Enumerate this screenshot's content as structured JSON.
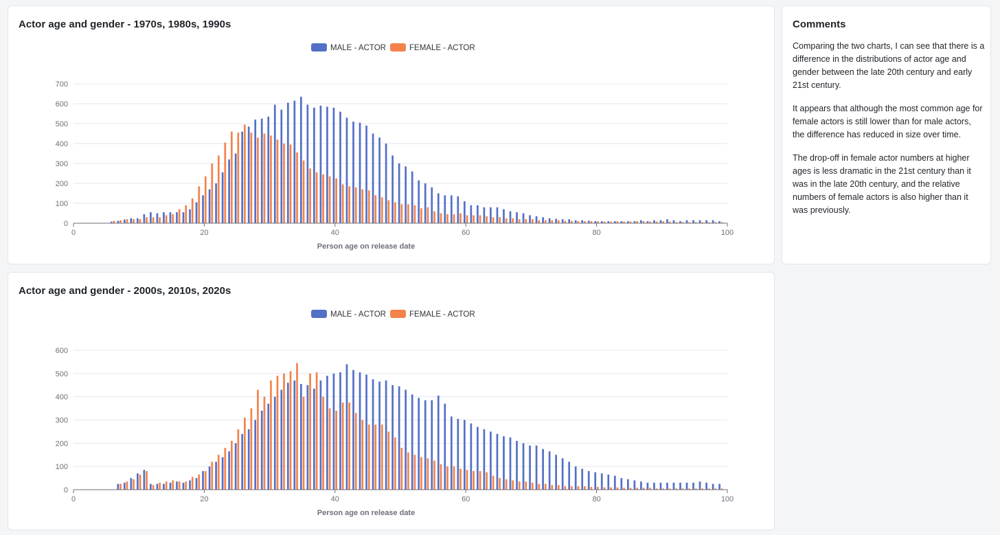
{
  "colors": {
    "male": "#5470c6",
    "female": "#f3834b",
    "grid": "#e4e7f2",
    "axis": "#6e7079"
  },
  "comments": {
    "title": "Comments",
    "paragraphs": [
      "Comparing the two charts, I can see that there is a difference in the distributions of actor age and gender between the late 20th century and early 21st century.",
      "It appears that although the most common age for female actors is still lower than for male actors, the difference has reduced in size over time.",
      "The drop-off in female actor numbers at higher ages is less dramatic in the 21st century than it was in the late 20th century, and the relative numbers of female actors is also higher than it was previously."
    ]
  },
  "chart_data": [
    {
      "type": "bar",
      "title": "Actor age and gender - 1970s, 1980s, 1990s",
      "xlabel": "Person age on release date",
      "ylabel": "",
      "xlim": [
        0,
        100
      ],
      "xticks": [
        0,
        20,
        40,
        60,
        80,
        100
      ],
      "ylim": [
        0,
        700
      ],
      "yticks": [
        0,
        100,
        200,
        300,
        400,
        500,
        600,
        700
      ],
      "legend": [
        "MALE - ACTOR",
        "FEMALE - ACTOR"
      ],
      "x": [
        6,
        7,
        8,
        9,
        10,
        11,
        12,
        13,
        14,
        15,
        16,
        17,
        18,
        19,
        20,
        21,
        22,
        23,
        24,
        25,
        26,
        27,
        28,
        29,
        30,
        31,
        32,
        33,
        34,
        35,
        36,
        37,
        38,
        39,
        40,
        41,
        42,
        43,
        44,
        45,
        46,
        47,
        48,
        49,
        50,
        51,
        52,
        53,
        54,
        55,
        56,
        57,
        58,
        59,
        60,
        61,
        62,
        63,
        64,
        65,
        66,
        67,
        68,
        69,
        70,
        71,
        72,
        73,
        74,
        75,
        76,
        77,
        78,
        79,
        80,
        81,
        82,
        83,
        84,
        85,
        86,
        87,
        88,
        89,
        90,
        91,
        92,
        93,
        94,
        95,
        96,
        97,
        98,
        99
      ],
      "series": [
        {
          "name": "MALE - ACTOR",
          "values": [
            8,
            12,
            18,
            25,
            25,
            45,
            55,
            50,
            55,
            55,
            55,
            55,
            70,
            105,
            140,
            170,
            200,
            255,
            320,
            350,
            460,
            485,
            520,
            525,
            535,
            595,
            570,
            605,
            615,
            635,
            595,
            580,
            590,
            585,
            580,
            560,
            530,
            510,
            505,
            490,
            450,
            430,
            400,
            340,
            300,
            285,
            260,
            215,
            200,
            180,
            150,
            140,
            140,
            135,
            110,
            90,
            90,
            80,
            80,
            80,
            70,
            60,
            55,
            50,
            40,
            35,
            30,
            25,
            22,
            20,
            20,
            15,
            15,
            12,
            10,
            10,
            10,
            10,
            10,
            10,
            10,
            15,
            10,
            15,
            15,
            20,
            15,
            10,
            15,
            15,
            15,
            15,
            15,
            10
          ]
        },
        {
          "name": "FEMALE - ACTOR",
          "values": [
            12,
            15,
            20,
            20,
            20,
            30,
            30,
            30,
            40,
            45,
            70,
            90,
            125,
            185,
            235,
            300,
            340,
            405,
            460,
            455,
            495,
            455,
            430,
            450,
            440,
            420,
            400,
            395,
            355,
            315,
            275,
            255,
            245,
            235,
            225,
            195,
            185,
            180,
            170,
            165,
            140,
            130,
            115,
            105,
            95,
            95,
            90,
            75,
            80,
            60,
            50,
            45,
            45,
            50,
            40,
            40,
            40,
            35,
            30,
            30,
            25,
            25,
            20,
            20,
            20,
            15,
            15,
            15,
            15,
            12,
            12,
            10,
            10,
            10,
            10,
            8,
            8,
            10,
            8,
            8,
            10,
            10,
            8,
            8,
            10,
            8,
            5,
            5,
            5,
            5,
            5,
            5,
            5,
            5
          ]
        }
      ]
    },
    {
      "type": "bar",
      "title": "Actor age and gender - 2000s, 2010s, 2020s",
      "xlabel": "Person age on release date",
      "ylabel": "",
      "xlim": [
        0,
        100
      ],
      "xticks": [
        0,
        20,
        40,
        60,
        80,
        100
      ],
      "ylim": [
        0,
        600
      ],
      "yticks": [
        0,
        100,
        200,
        300,
        400,
        500,
        600
      ],
      "legend": [
        "MALE - ACTOR",
        "FEMALE - ACTOR"
      ],
      "x": [
        7,
        8,
        9,
        10,
        11,
        12,
        13,
        14,
        15,
        16,
        17,
        18,
        19,
        20,
        21,
        22,
        23,
        24,
        25,
        26,
        27,
        28,
        29,
        30,
        31,
        32,
        33,
        34,
        35,
        36,
        37,
        38,
        39,
        40,
        41,
        42,
        43,
        44,
        45,
        46,
        47,
        48,
        49,
        50,
        51,
        52,
        53,
        54,
        55,
        56,
        57,
        58,
        59,
        60,
        61,
        62,
        63,
        64,
        65,
        66,
        67,
        68,
        69,
        70,
        71,
        72,
        73,
        74,
        75,
        76,
        77,
        78,
        79,
        80,
        81,
        82,
        83,
        84,
        85,
        86,
        87,
        88,
        89,
        90,
        91,
        92,
        93,
        94,
        95,
        96,
        97,
        98,
        99
      ],
      "series": [
        {
          "name": "MALE - ACTOR",
          "values": [
            25,
            30,
            50,
            70,
            85,
            25,
            25,
            25,
            30,
            35,
            30,
            40,
            50,
            80,
            100,
            120,
            140,
            165,
            200,
            240,
            260,
            300,
            340,
            370,
            400,
            430,
            460,
            470,
            455,
            450,
            435,
            470,
            490,
            500,
            505,
            540,
            515,
            505,
            495,
            475,
            465,
            470,
            450,
            445,
            430,
            410,
            395,
            385,
            385,
            405,
            370,
            315,
            305,
            300,
            285,
            270,
            260,
            250,
            240,
            230,
            225,
            210,
            200,
            190,
            190,
            175,
            165,
            150,
            135,
            120,
            100,
            90,
            80,
            75,
            70,
            65,
            60,
            50,
            45,
            40,
            35,
            30,
            30,
            30,
            30,
            30,
            30,
            30,
            30,
            35,
            30,
            25,
            25
          ]
        },
        {
          "name": "FEMALE - ACTOR",
          "values": [
            25,
            35,
            45,
            65,
            80,
            20,
            30,
            35,
            40,
            35,
            35,
            55,
            65,
            80,
            120,
            150,
            180,
            210,
            260,
            310,
            350,
            430,
            400,
            470,
            490,
            500,
            510,
            545,
            400,
            500,
            505,
            400,
            350,
            340,
            375,
            375,
            330,
            300,
            280,
            280,
            280,
            250,
            225,
            180,
            160,
            150,
            140,
            135,
            125,
            110,
            100,
            100,
            90,
            85,
            80,
            80,
            75,
            60,
            50,
            45,
            40,
            35,
            35,
            30,
            25,
            25,
            20,
            20,
            15,
            15,
            15,
            15,
            12,
            12,
            10,
            10,
            10,
            8,
            8,
            8,
            8,
            8,
            5,
            5,
            5,
            5,
            5,
            5,
            5,
            5,
            5,
            5,
            5
          ]
        }
      ]
    }
  ]
}
